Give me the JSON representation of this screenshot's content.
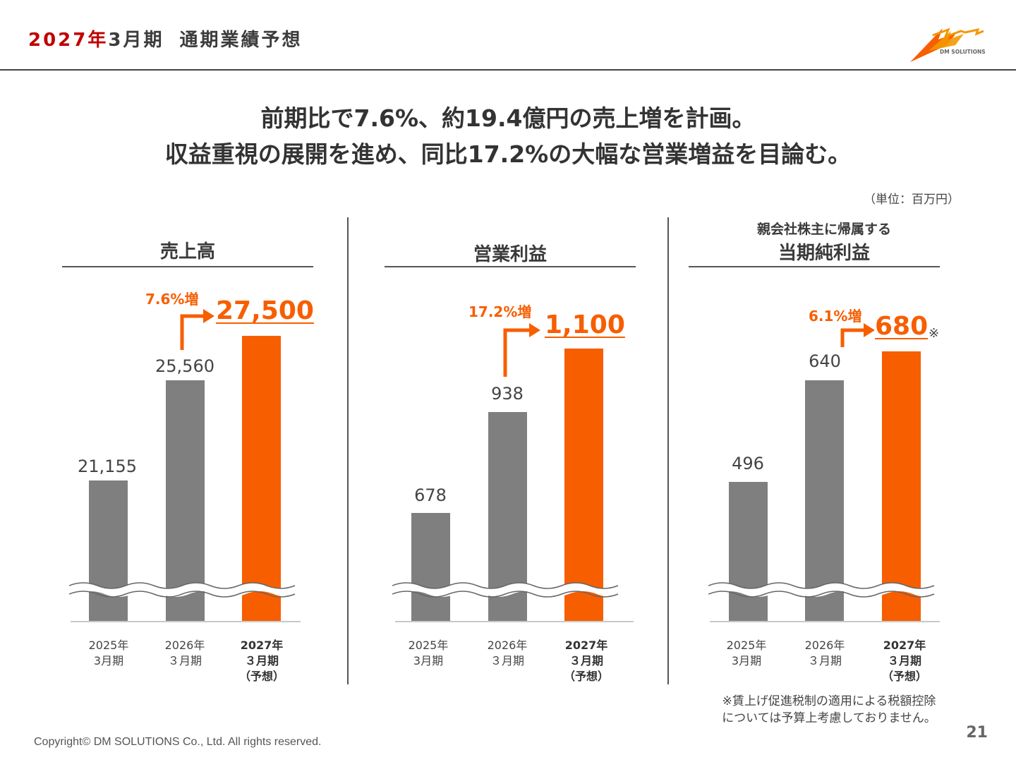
{
  "header": {
    "title_highlight": "2027年",
    "title_period": "3月期",
    "title_main": "通期業績予想"
  },
  "logo": {
    "text": "DM SOLUTIONS",
    "icon": "dm-solutions-logo-icon"
  },
  "headline": {
    "line1": "前期比で7.6%、約19.4億円の売上増を計画。",
    "line2": "収益重視の展開を進め、同比17.2%の大幅な営業増益を目論む。"
  },
  "unit_label": "（単位：百万円）",
  "panels": [
    {
      "title_small": "",
      "title": "売上高",
      "growth": "7.6%増",
      "forecast_label": "27,500",
      "forecast_mark": "",
      "bars": [
        {
          "label": "21,155",
          "value": 21155,
          "x_line1": "2025年",
          "x_line2": "3月期",
          "x_line3": ""
        },
        {
          "label": "25,560",
          "value": 25560,
          "x_line1": "2026年",
          "x_line2": "３月期",
          "x_line3": ""
        },
        {
          "label": "27,500",
          "value": 27500,
          "x_line1": "2027年",
          "x_line2": "３月期",
          "x_line3": "（予想）"
        }
      ]
    },
    {
      "title_small": "",
      "title": "営業利益",
      "growth": "17.2%増",
      "forecast_label": "1,100",
      "forecast_mark": "",
      "bars": [
        {
          "label": "678",
          "value": 678,
          "x_line1": "2025年",
          "x_line2": "3月期",
          "x_line3": ""
        },
        {
          "label": "938",
          "value": 938,
          "x_line1": "2026年",
          "x_line2": "３月期",
          "x_line3": ""
        },
        {
          "label": "1,100",
          "value": 1100,
          "x_line1": "2027年",
          "x_line2": "３月期",
          "x_line3": "（予想）"
        }
      ]
    },
    {
      "title_small": "親会社株主に帰属する",
      "title": "当期純利益",
      "growth": "6.1%増",
      "forecast_label": "680",
      "forecast_mark": "※",
      "bars": [
        {
          "label": "496",
          "value": 496,
          "x_line1": "2025年",
          "x_line2": "3月期",
          "x_line3": ""
        },
        {
          "label": "640",
          "value": 640,
          "x_line1": "2026年",
          "x_line2": "３月期",
          "x_line3": ""
        },
        {
          "label": "680",
          "value": 680,
          "x_line1": "2027年",
          "x_line2": "３月期",
          "x_line3": "（予想）"
        }
      ]
    }
  ],
  "note": {
    "line1": "※賃上げ促進税制の適用による税額控除",
    "line2": "については予算上考慮しておりません。"
  },
  "footer": {
    "copyright": "Copyright© DM SOLUTIONS Co., Ltd. All rights reserved.",
    "page": "21"
  },
  "colors": {
    "accent": "#f75e00",
    "bar_gray": "#7f7f7f",
    "title_red": "#c00000"
  },
  "chart_data": [
    {
      "type": "bar",
      "title": "売上高",
      "categories": [
        "2025年3月期",
        "2026年3月期",
        "2027年3月期（予想）"
      ],
      "values": [
        21155,
        25560,
        27500
      ],
      "axis_break": true
    },
    {
      "type": "bar",
      "title": "営業利益",
      "categories": [
        "2025年3月期",
        "2026年3月期",
        "2027年3月期（予想）"
      ],
      "values": [
        678,
        938,
        1100
      ],
      "axis_break": true
    },
    {
      "type": "bar",
      "title": "親会社株主に帰属する当期純利益",
      "categories": [
        "2025年3月期",
        "2026年3月期",
        "2027年3月期（予想）"
      ],
      "values": [
        496,
        640,
        680
      ],
      "axis_break": true
    }
  ]
}
